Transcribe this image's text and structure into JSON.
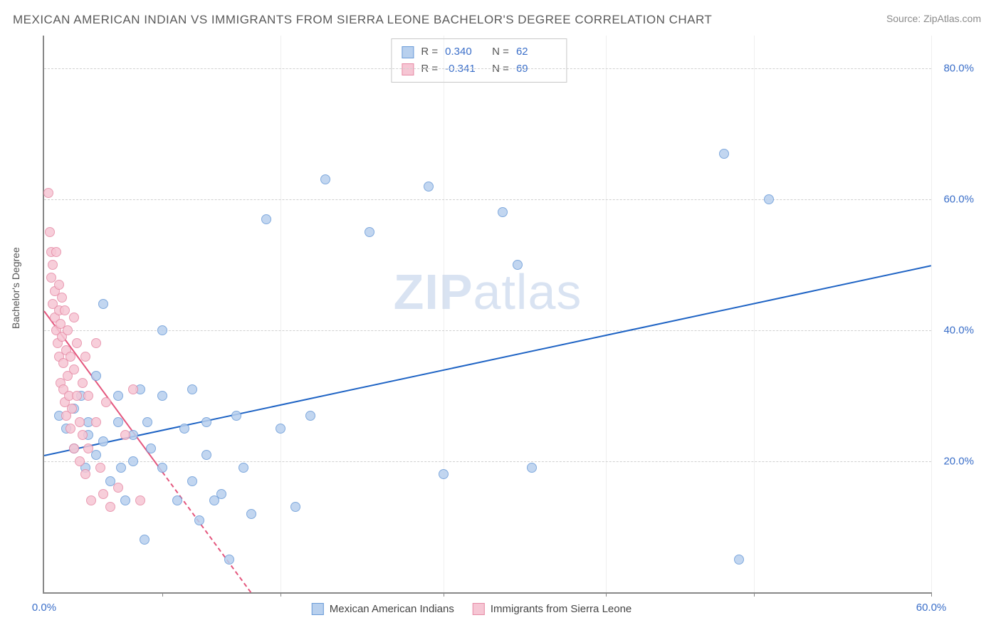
{
  "title": "MEXICAN AMERICAN INDIAN VS IMMIGRANTS FROM SIERRA LEONE BACHELOR'S DEGREE CORRELATION CHART",
  "source": "Source: ZipAtlas.com",
  "ylabel": "Bachelor's Degree",
  "watermark_a": "ZIP",
  "watermark_b": "atlas",
  "chart": {
    "type": "scatter",
    "background_color": "#ffffff",
    "grid_color": "#d0d0d0",
    "axis_color": "#888888",
    "xlim": [
      0,
      60
    ],
    "ylim": [
      0,
      85
    ],
    "xticks": [
      0,
      8,
      16,
      27,
      38,
      48,
      60
    ],
    "xtick_labels": {
      "0": "0.0%",
      "60": "60.0%"
    },
    "yticks": [
      20,
      40,
      60,
      80
    ],
    "ytick_labels": {
      "20": "20.0%",
      "40": "40.0%",
      "60": "60.0%",
      "80": "80.0%"
    },
    "label_color": "#3b6fc9",
    "label_fontsize": 15,
    "marker_radius": 7,
    "marker_border_width": 1.2,
    "series": [
      {
        "name": "Mexican American Indians",
        "fill": "#b8d0ee",
        "stroke": "#6a9bd8",
        "R": "0.340",
        "N": "62",
        "regression": {
          "x1": 0,
          "y1": 21,
          "x2": 60,
          "y2": 50,
          "color": "#1e63c4",
          "width": 2.5,
          "dashed": false
        },
        "points": [
          [
            1,
            27
          ],
          [
            1.5,
            25
          ],
          [
            2,
            22
          ],
          [
            2,
            28
          ],
          [
            2.5,
            30
          ],
          [
            2.8,
            19
          ],
          [
            3,
            24
          ],
          [
            3,
            26
          ],
          [
            3.5,
            33
          ],
          [
            3.5,
            21
          ],
          [
            4,
            44
          ],
          [
            4,
            23
          ],
          [
            4.5,
            17
          ],
          [
            5,
            30
          ],
          [
            5,
            26
          ],
          [
            5.2,
            19
          ],
          [
            5.5,
            14
          ],
          [
            6,
            20
          ],
          [
            6,
            24
          ],
          [
            6.5,
            31
          ],
          [
            6.8,
            8
          ],
          [
            7,
            26
          ],
          [
            7.2,
            22
          ],
          [
            8,
            40
          ],
          [
            8,
            30
          ],
          [
            8,
            19
          ],
          [
            9,
            14
          ],
          [
            9.5,
            25
          ],
          [
            10,
            31
          ],
          [
            10,
            17
          ],
          [
            10.5,
            11
          ],
          [
            11,
            26
          ],
          [
            11,
            21
          ],
          [
            11.5,
            14
          ],
          [
            12,
            15
          ],
          [
            12.5,
            5
          ],
          [
            13,
            27
          ],
          [
            13.5,
            19
          ],
          [
            14,
            12
          ],
          [
            15,
            57
          ],
          [
            16,
            25
          ],
          [
            17,
            13
          ],
          [
            18,
            27
          ],
          [
            19,
            63
          ],
          [
            22,
            55
          ],
          [
            26,
            62
          ],
          [
            27,
            18
          ],
          [
            31,
            58
          ],
          [
            32,
            50
          ],
          [
            33,
            19
          ],
          [
            46,
            67
          ],
          [
            47,
            5
          ],
          [
            49,
            60
          ]
        ]
      },
      {
        "name": "Immigrants from Sierra Leone",
        "fill": "#f6c6d4",
        "stroke": "#e68aa5",
        "R": "-0.341",
        "N": "69",
        "regression": {
          "x1": 0,
          "y1": 43,
          "x2": 14,
          "y2": 0,
          "color": "#e4567d",
          "width": 2,
          "dashed": true,
          "solid_until_x": 8
        },
        "points": [
          [
            0.3,
            61
          ],
          [
            0.4,
            55
          ],
          [
            0.5,
            52
          ],
          [
            0.5,
            48
          ],
          [
            0.6,
            50
          ],
          [
            0.6,
            44
          ],
          [
            0.7,
            46
          ],
          [
            0.7,
            42
          ],
          [
            0.8,
            40
          ],
          [
            0.8,
            52
          ],
          [
            0.9,
            38
          ],
          [
            1,
            47
          ],
          [
            1,
            43
          ],
          [
            1,
            36
          ],
          [
            1.1,
            41
          ],
          [
            1.1,
            32
          ],
          [
            1.2,
            45
          ],
          [
            1.2,
            39
          ],
          [
            1.3,
            35
          ],
          [
            1.3,
            31
          ],
          [
            1.4,
            43
          ],
          [
            1.4,
            29
          ],
          [
            1.5,
            37
          ],
          [
            1.5,
            27
          ],
          [
            1.6,
            40
          ],
          [
            1.6,
            33
          ],
          [
            1.7,
            30
          ],
          [
            1.8,
            36
          ],
          [
            1.8,
            25
          ],
          [
            1.9,
            28
          ],
          [
            2,
            42
          ],
          [
            2,
            34
          ],
          [
            2,
            22
          ],
          [
            2.2,
            38
          ],
          [
            2.2,
            30
          ],
          [
            2.4,
            26
          ],
          [
            2.4,
            20
          ],
          [
            2.6,
            32
          ],
          [
            2.6,
            24
          ],
          [
            2.8,
            36
          ],
          [
            2.8,
            18
          ],
          [
            3,
            30
          ],
          [
            3,
            22
          ],
          [
            3.2,
            14
          ],
          [
            3.5,
            38
          ],
          [
            3.5,
            26
          ],
          [
            3.8,
            19
          ],
          [
            4,
            15
          ],
          [
            4.2,
            29
          ],
          [
            4.5,
            13
          ],
          [
            5,
            16
          ],
          [
            5.5,
            24
          ],
          [
            6,
            31
          ],
          [
            6.5,
            14
          ]
        ]
      }
    ]
  },
  "stats_labels": {
    "R": "R =",
    "N": "N ="
  },
  "legend": {
    "series1": "Mexican American Indians",
    "series2": "Immigrants from Sierra Leone"
  }
}
